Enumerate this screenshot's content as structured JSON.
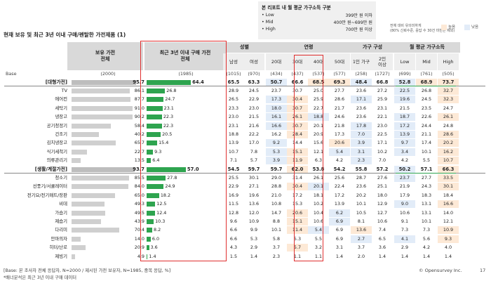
{
  "legend": {
    "title": "본 리포트 내 월 평균 가구소득 구분",
    "items": [
      {
        "name": "Low",
        "value": "399만 원 이하"
      },
      {
        "name": "Mid",
        "value": "400만 원~699만 원"
      },
      {
        "name": "High",
        "value": "700만 원 이상"
      }
    ]
  },
  "significance": {
    "line1": "전체 대비 유의미하게",
    "line2": "(80% 신뢰수준, 응답 수 30건 미만은 제외)",
    "high_label": "높음",
    "low_label": "낮음",
    "high_color": "#fde9d6",
    "low_color": "#e2ecf8"
  },
  "title": "현재 보유 및 최근 3년 이내 구매/렌탈한 가전제품 (1)",
  "header": {
    "col_own": "보유 가전\n전체",
    "col_recent": "최근 3년 이내 구매 가전\n전체",
    "groups": [
      {
        "name": "성별",
        "subs": [
          "남성",
          "여성"
        ]
      },
      {
        "name": "연령",
        "subs": [
          "20대",
          "30대",
          "40대",
          "50대"
        ]
      },
      {
        "name": "가구 구성",
        "subs": [
          "1인 가구",
          "2인\n이상"
        ]
      },
      {
        "name": "월 평균 가구소득",
        "subs": [
          "Low",
          "Mid",
          "High"
        ]
      }
    ]
  },
  "base_row": {
    "label": "Base",
    "own": "(2000)",
    "recent": "(1985)",
    "cells": [
      "(1015)",
      "(970)",
      "(434)",
      "(437)",
      "(537)",
      "(577)",
      "(258)",
      "(1727)",
      "(699)",
      "(761)",
      "(505)"
    ]
  },
  "rows": [
    {
      "label": "[대형가전]",
      "grp": true,
      "own": 95.7,
      "recent": 64.4,
      "cells": [
        "65.5",
        "63.3",
        "50.7",
        "66.6",
        "68.5",
        "69.3",
        "48.4",
        "66.8",
        "52.8",
        "68.9",
        "73.7"
      ],
      "hl": [
        "",
        "",
        "l",
        "",
        "h",
        "h",
        "l",
        "",
        "l",
        "h",
        "h"
      ]
    },
    {
      "label": "TV",
      "own": 86.1,
      "recent": 26.8,
      "cells": [
        "28.9",
        "24.5",
        "23.7",
        "30.7",
        "25.0",
        "27.7",
        "23.6",
        "27.2",
        "22.5",
        "26.8",
        "32.7"
      ],
      "hl": [
        "",
        "",
        "",
        "",
        "",
        "",
        "",
        "",
        "l",
        "",
        "h"
      ]
    },
    {
      "label": "에어컨",
      "own": 87.7,
      "recent": 24.7,
      "cells": [
        "26.5",
        "22.9",
        "17.3",
        "30.4",
        "25.9",
        "28.6",
        "17.1",
        "25.9",
        "19.6",
        "24.5",
        "32.3"
      ],
      "hl": [
        "",
        "",
        "l",
        "h",
        "",
        "",
        "l",
        "",
        "l",
        "",
        "h"
      ]
    },
    {
      "label": "세탁기",
      "own": 91.0,
      "recent": 23.1,
      "cells": [
        "23.3",
        "23.0",
        "18.0",
        "30.7",
        "22.7",
        "21.7",
        "23.6",
        "23.1",
        "21.5",
        "23.5",
        "24.7"
      ],
      "hl": [
        "",
        "",
        "l",
        "h",
        "",
        "",
        "",
        "",
        "",
        "",
        ""
      ]
    },
    {
      "label": "냉장고",
      "own": 90.2,
      "recent": 22.3,
      "cells": [
        "23.0",
        "21.5",
        "16.1",
        "26.1",
        "18.8",
        "24.6",
        "23.6",
        "22.1",
        "18.7",
        "22.6",
        "26.1"
      ],
      "hl": [
        "",
        "",
        "l",
        "h",
        "l",
        "",
        "",
        "",
        "l",
        "",
        "h"
      ]
    },
    {
      "label": "공기청정기",
      "own": 58.4,
      "recent": 22.3,
      "cells": [
        "23.1",
        "21.6",
        "16.6",
        "30.7",
        "20.1",
        "21.8",
        "17.8",
        "23.0",
        "17.2",
        "24.4",
        "24.8"
      ],
      "hl": [
        "",
        "",
        "l",
        "h",
        "",
        "",
        "l",
        "",
        "l",
        "",
        ""
      ]
    },
    {
      "label": "건조기",
      "own": 40.2,
      "recent": 20.5,
      "cells": [
        "18.8",
        "22.2",
        "16.2",
        "28.4",
        "20.9",
        "17.3",
        "7.0",
        "22.5",
        "13.9",
        "21.1",
        "28.6"
      ],
      "hl": [
        "",
        "",
        "",
        "h",
        "",
        "",
        "l",
        "",
        "l",
        "",
        "h"
      ]
    },
    {
      "label": "김치냉장고",
      "own": 65.7,
      "recent": 15.4,
      "cells": [
        "13.9",
        "17.0",
        "9.2",
        "14.4",
        "15.6",
        "20.6",
        "3.9",
        "17.1",
        "9.7",
        "17.4",
        "20.2"
      ],
      "hl": [
        "",
        "",
        "l",
        "",
        "",
        "h",
        "l",
        "",
        "l",
        "",
        "h"
      ]
    },
    {
      "label": "식기세척기",
      "own": 22.7,
      "recent": 9.3,
      "cells": [
        "10.7",
        "7.8",
        "5.3",
        "15.1",
        "12.1",
        "5.4",
        "3.1",
        "10.2",
        "3.4",
        "10.1",
        "16.2"
      ],
      "hl": [
        "",
        "",
        "l",
        "h",
        "",
        "l",
        "l",
        "",
        "l",
        "",
        "h"
      ]
    },
    {
      "label": "의류관리기",
      "own": 13.5,
      "recent": 6.4,
      "cells": [
        "7.1",
        "5.7",
        "3.9",
        "11.9",
        "6.3",
        "4.2",
        "2.3",
        "7.0",
        "4.2",
        "5.5",
        "10.7"
      ],
      "hl": [
        "",
        "",
        "l",
        "h",
        "",
        "",
        "l",
        "",
        "",
        "",
        "h"
      ]
    },
    {
      "label": "[생활/계절가전]",
      "grp": true,
      "own": 93.7,
      "recent": 57.0,
      "cells": [
        "54.5",
        "59.7",
        "59.7",
        "62.0",
        "53.8",
        "54.2",
        "55.8",
        "57.2",
        "50.2",
        "57.1",
        "66.3"
      ],
      "hl": [
        "",
        "",
        "",
        "h",
        "",
        "",
        "",
        "",
        "l",
        "",
        "h"
      ]
    },
    {
      "label": "청소기",
      "own": 85.5,
      "recent": 27.8,
      "cells": [
        "25.5",
        "30.1",
        "29.0",
        "31.4",
        "26.1",
        "25.6",
        "28.7",
        "27.6",
        "23.7",
        "27.7",
        "33.5"
      ],
      "hl": [
        "",
        "",
        "",
        "",
        "",
        "",
        "",
        "",
        "l",
        "",
        "h"
      ]
    },
    {
      "label": "선풍기/서큘레이터",
      "own": 84.0,
      "recent": 24.9,
      "cells": [
        "22.9",
        "27.1",
        "28.8",
        "30.4",
        "20.1",
        "22.4",
        "23.6",
        "25.1",
        "21.9",
        "24.3",
        "30.1"
      ],
      "hl": [
        "",
        "",
        "",
        "h",
        "l",
        "",
        "",
        "",
        "",
        "",
        "h"
      ]
    },
    {
      "label": "전기요/전기매트/장판",
      "own": 65.0,
      "recent": 18.2,
      "cells": [
        "16.9",
        "19.6",
        "21.0",
        "17.2",
        "18.1",
        "17.2",
        "20.2",
        "18.0",
        "17.9",
        "18.3",
        "18.4"
      ],
      "hl": [
        "",
        "",
        "",
        "",
        "",
        "",
        "",
        "",
        "",
        "",
        ""
      ]
    },
    {
      "label": "비데",
      "own": 49.3,
      "recent": 12.5,
      "cells": [
        "11.5",
        "13.6",
        "10.8",
        "15.3",
        "10.2",
        "13.9",
        "10.1",
        "12.9",
        "9.0",
        "13.1",
        "16.6"
      ],
      "hl": [
        "",
        "",
        "",
        "",
        "",
        "",
        "",
        "",
        "l",
        "",
        "h"
      ]
    },
    {
      "label": "가습기",
      "own": 49.5,
      "recent": 12.4,
      "cells": [
        "12.8",
        "12.0",
        "14.7",
        "20.6",
        "10.4",
        "6.2",
        "10.5",
        "12.7",
        "10.6",
        "13.1",
        "14.0"
      ],
      "hl": [
        "",
        "",
        "",
        "h",
        "",
        "l",
        "",
        "",
        "",
        "",
        ""
      ]
    },
    {
      "label": "제습기",
      "own": 43.9,
      "recent": 10.3,
      "cells": [
        "9.6",
        "10.9",
        "8.8",
        "15.1",
        "10.6",
        "6.9",
        "8.1",
        "10.6",
        "9.1",
        "10.1",
        "12.1"
      ],
      "hl": [
        "",
        "",
        "",
        "h",
        "",
        "l",
        "",
        "",
        "",
        "",
        ""
      ]
    },
    {
      "label": "다리미",
      "own": 70.4,
      "recent": 8.2,
      "cells": [
        "6.6",
        "9.9",
        "10.1",
        "11.4",
        "5.4",
        "6.9",
        "13.6",
        "7.4",
        "7.3",
        "7.3",
        "10.9"
      ],
      "hl": [
        "",
        "",
        "",
        "h",
        "l",
        "",
        "h",
        "",
        "",
        "",
        "h"
      ]
    },
    {
      "label": "안마의자",
      "own": 14.0,
      "recent": 6.0,
      "cells": [
        "6.6",
        "5.3",
        "5.8",
        "5.3",
        "5.5",
        "6.9",
        "2.7",
        "6.5",
        "4.1",
        "5.6",
        "9.3"
      ],
      "hl": [
        "",
        "",
        "",
        "",
        "",
        "",
        "l",
        "",
        "l",
        "",
        "h"
      ]
    },
    {
      "label": "히터/난로",
      "own": 20.9,
      "recent": 3.6,
      "cells": [
        "4.3",
        "2.9",
        "3.7",
        "5.7",
        "3.2",
        "3.1",
        "3.7",
        "3.6",
        "2.9",
        "4.2",
        "4.0"
      ],
      "hl": [
        "",
        "",
        "",
        "h",
        "",
        "",
        "",
        "",
        "",
        "",
        ""
      ]
    },
    {
      "label": "제빙기",
      "own": 4.9,
      "recent": 1.4,
      "cells": [
        "1.5",
        "1.4",
        "2.3",
        "1.1",
        "1.1",
        "1.4",
        "2.0",
        "1.4",
        "1.4",
        "1.4",
        "1.4"
      ],
      "hl": [
        "",
        "",
        "",
        "",
        "",
        "",
        "",
        "",
        "",
        "",
        ""
      ]
    }
  ],
  "footnote1": "[Base: 본 조사자 전체 응답자, N=2000 / 제시된 가전 보유자, N=1985, 중복 응답, %]",
  "footnote2": "*배너분석은 최근 3년 이내 구매 데이터",
  "brand": "© Opensurvey Inc.",
  "page_number": "17",
  "colors": {
    "bar_own": "#c9c9c9",
    "bar_recent": "#2ea44f",
    "highlight_border": "#e03030"
  }
}
